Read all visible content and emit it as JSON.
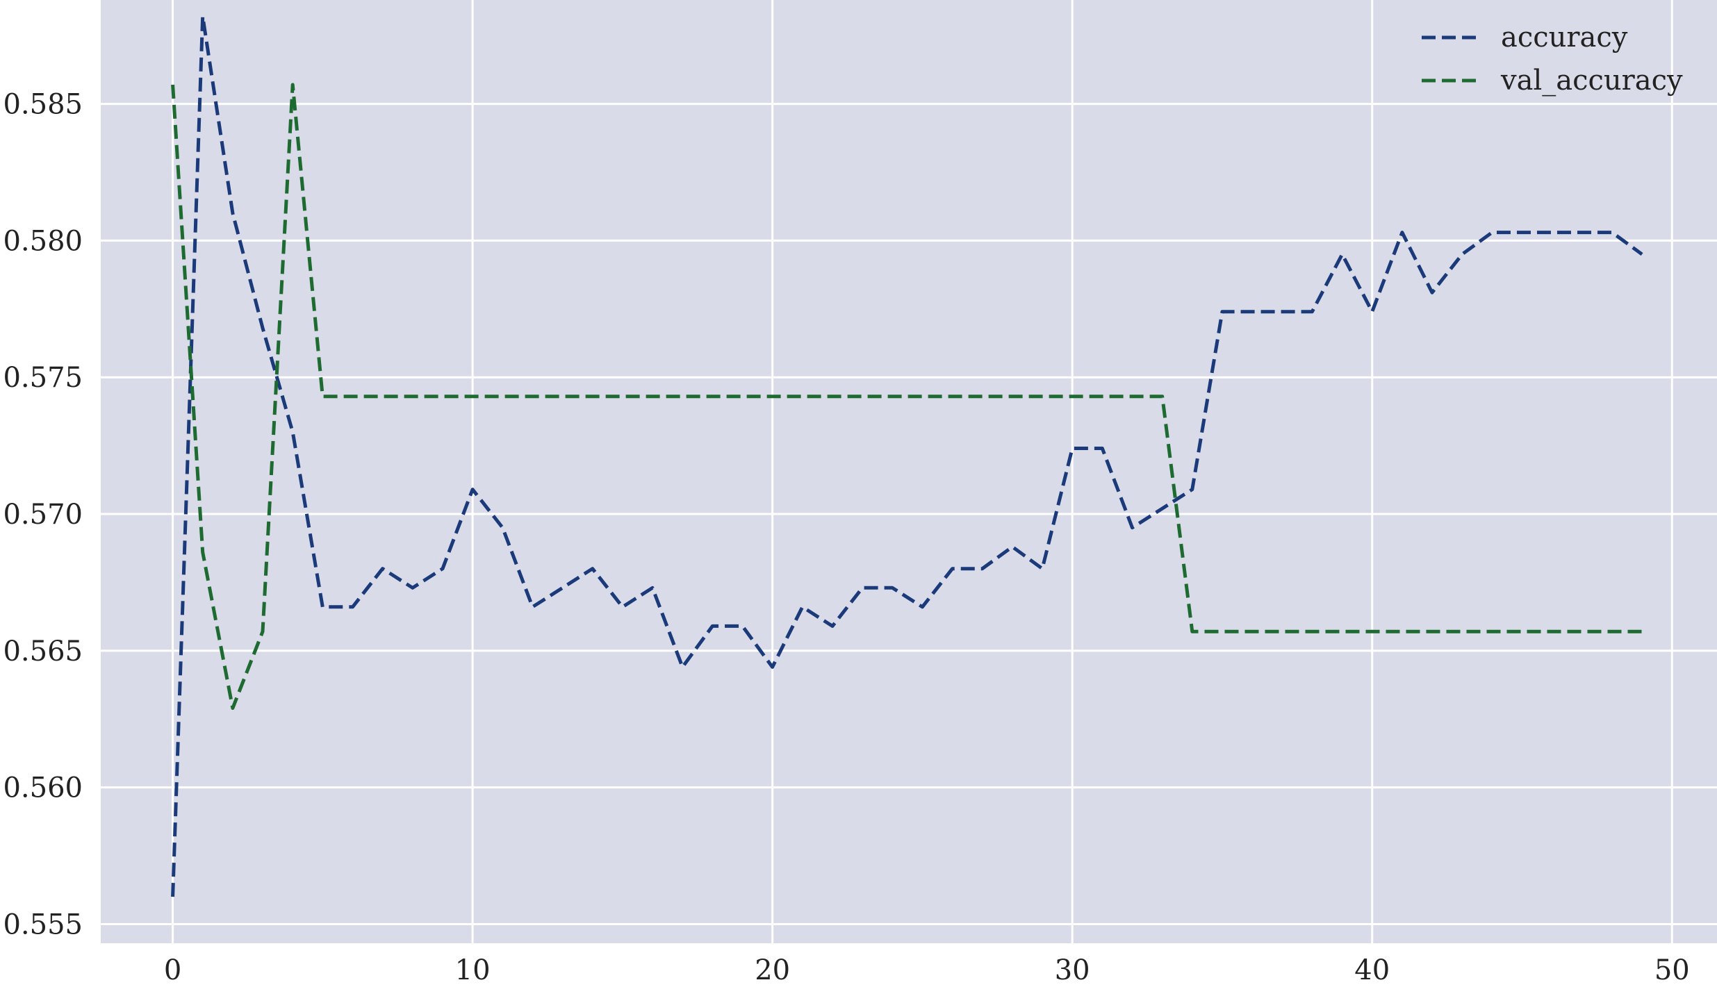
{
  "chart_data": {
    "type": "line",
    "title": "",
    "xlabel": "",
    "ylabel": "",
    "xlim": [
      -2.4,
      51.5
    ],
    "ylim": [
      0.5543,
      0.5888
    ],
    "xticks": [
      0,
      10,
      20,
      30,
      40,
      50
    ],
    "xtick_labels": [
      "0",
      "10",
      "20",
      "30",
      "40",
      "50"
    ],
    "yticks": [
      0.555,
      0.56,
      0.565,
      0.57,
      0.575,
      0.58,
      0.585
    ],
    "ytick_labels": [
      "0.555",
      "0.560",
      "0.565",
      "0.570",
      "0.575",
      "0.580",
      "0.585"
    ],
    "grid": true,
    "background": "#dadbe8",
    "legend_position": "top-right",
    "x": [
      0,
      1,
      2,
      3,
      4,
      5,
      6,
      7,
      8,
      9,
      10,
      11,
      12,
      13,
      14,
      15,
      16,
      17,
      18,
      19,
      20,
      21,
      22,
      23,
      24,
      25,
      26,
      27,
      28,
      29,
      30,
      31,
      32,
      33,
      34,
      35,
      36,
      37,
      38,
      39,
      40,
      41,
      42,
      43,
      44,
      45,
      46,
      47,
      48,
      49
    ],
    "series": [
      {
        "name": "accuracy",
        "color": "#1b3a7a",
        "dash": "dashed",
        "values": [
          0.556,
          0.5882,
          0.581,
          0.5768,
          0.573,
          0.5666,
          0.5666,
          0.568,
          0.5673,
          0.568,
          0.5709,
          0.5695,
          0.5666,
          0.5673,
          0.568,
          0.5666,
          0.5673,
          0.5644,
          0.5659,
          0.5659,
          0.5644,
          0.5666,
          0.5659,
          0.5673,
          0.5673,
          0.5666,
          0.568,
          0.568,
          0.5688,
          0.568,
          0.5724,
          0.5724,
          0.5695,
          0.5702,
          0.5709,
          0.5774,
          0.5774,
          0.5774,
          0.5774,
          0.5795,
          0.5774,
          0.5803,
          0.5781,
          0.5795,
          0.5803,
          0.5803,
          0.5803,
          0.5803,
          0.5803,
          0.5795
        ]
      },
      {
        "name": "val_accuracy",
        "color": "#1e6b31",
        "dash": "dashed",
        "values": [
          0.5857,
          0.5686,
          0.5629,
          0.5657,
          0.5857,
          0.5743,
          0.5743,
          0.5743,
          0.5743,
          0.5743,
          0.5743,
          0.5743,
          0.5743,
          0.5743,
          0.5743,
          0.5743,
          0.5743,
          0.5743,
          0.5743,
          0.5743,
          0.5743,
          0.5743,
          0.5743,
          0.5743,
          0.5743,
          0.5743,
          0.5743,
          0.5743,
          0.5743,
          0.5743,
          0.5743,
          0.5743,
          0.5743,
          0.5743,
          0.5657,
          0.5657,
          0.5657,
          0.5657,
          0.5657,
          0.5657,
          0.5657,
          0.5657,
          0.5657,
          0.5657,
          0.5657,
          0.5657,
          0.5657,
          0.5657,
          0.5657,
          0.5657
        ]
      }
    ]
  }
}
